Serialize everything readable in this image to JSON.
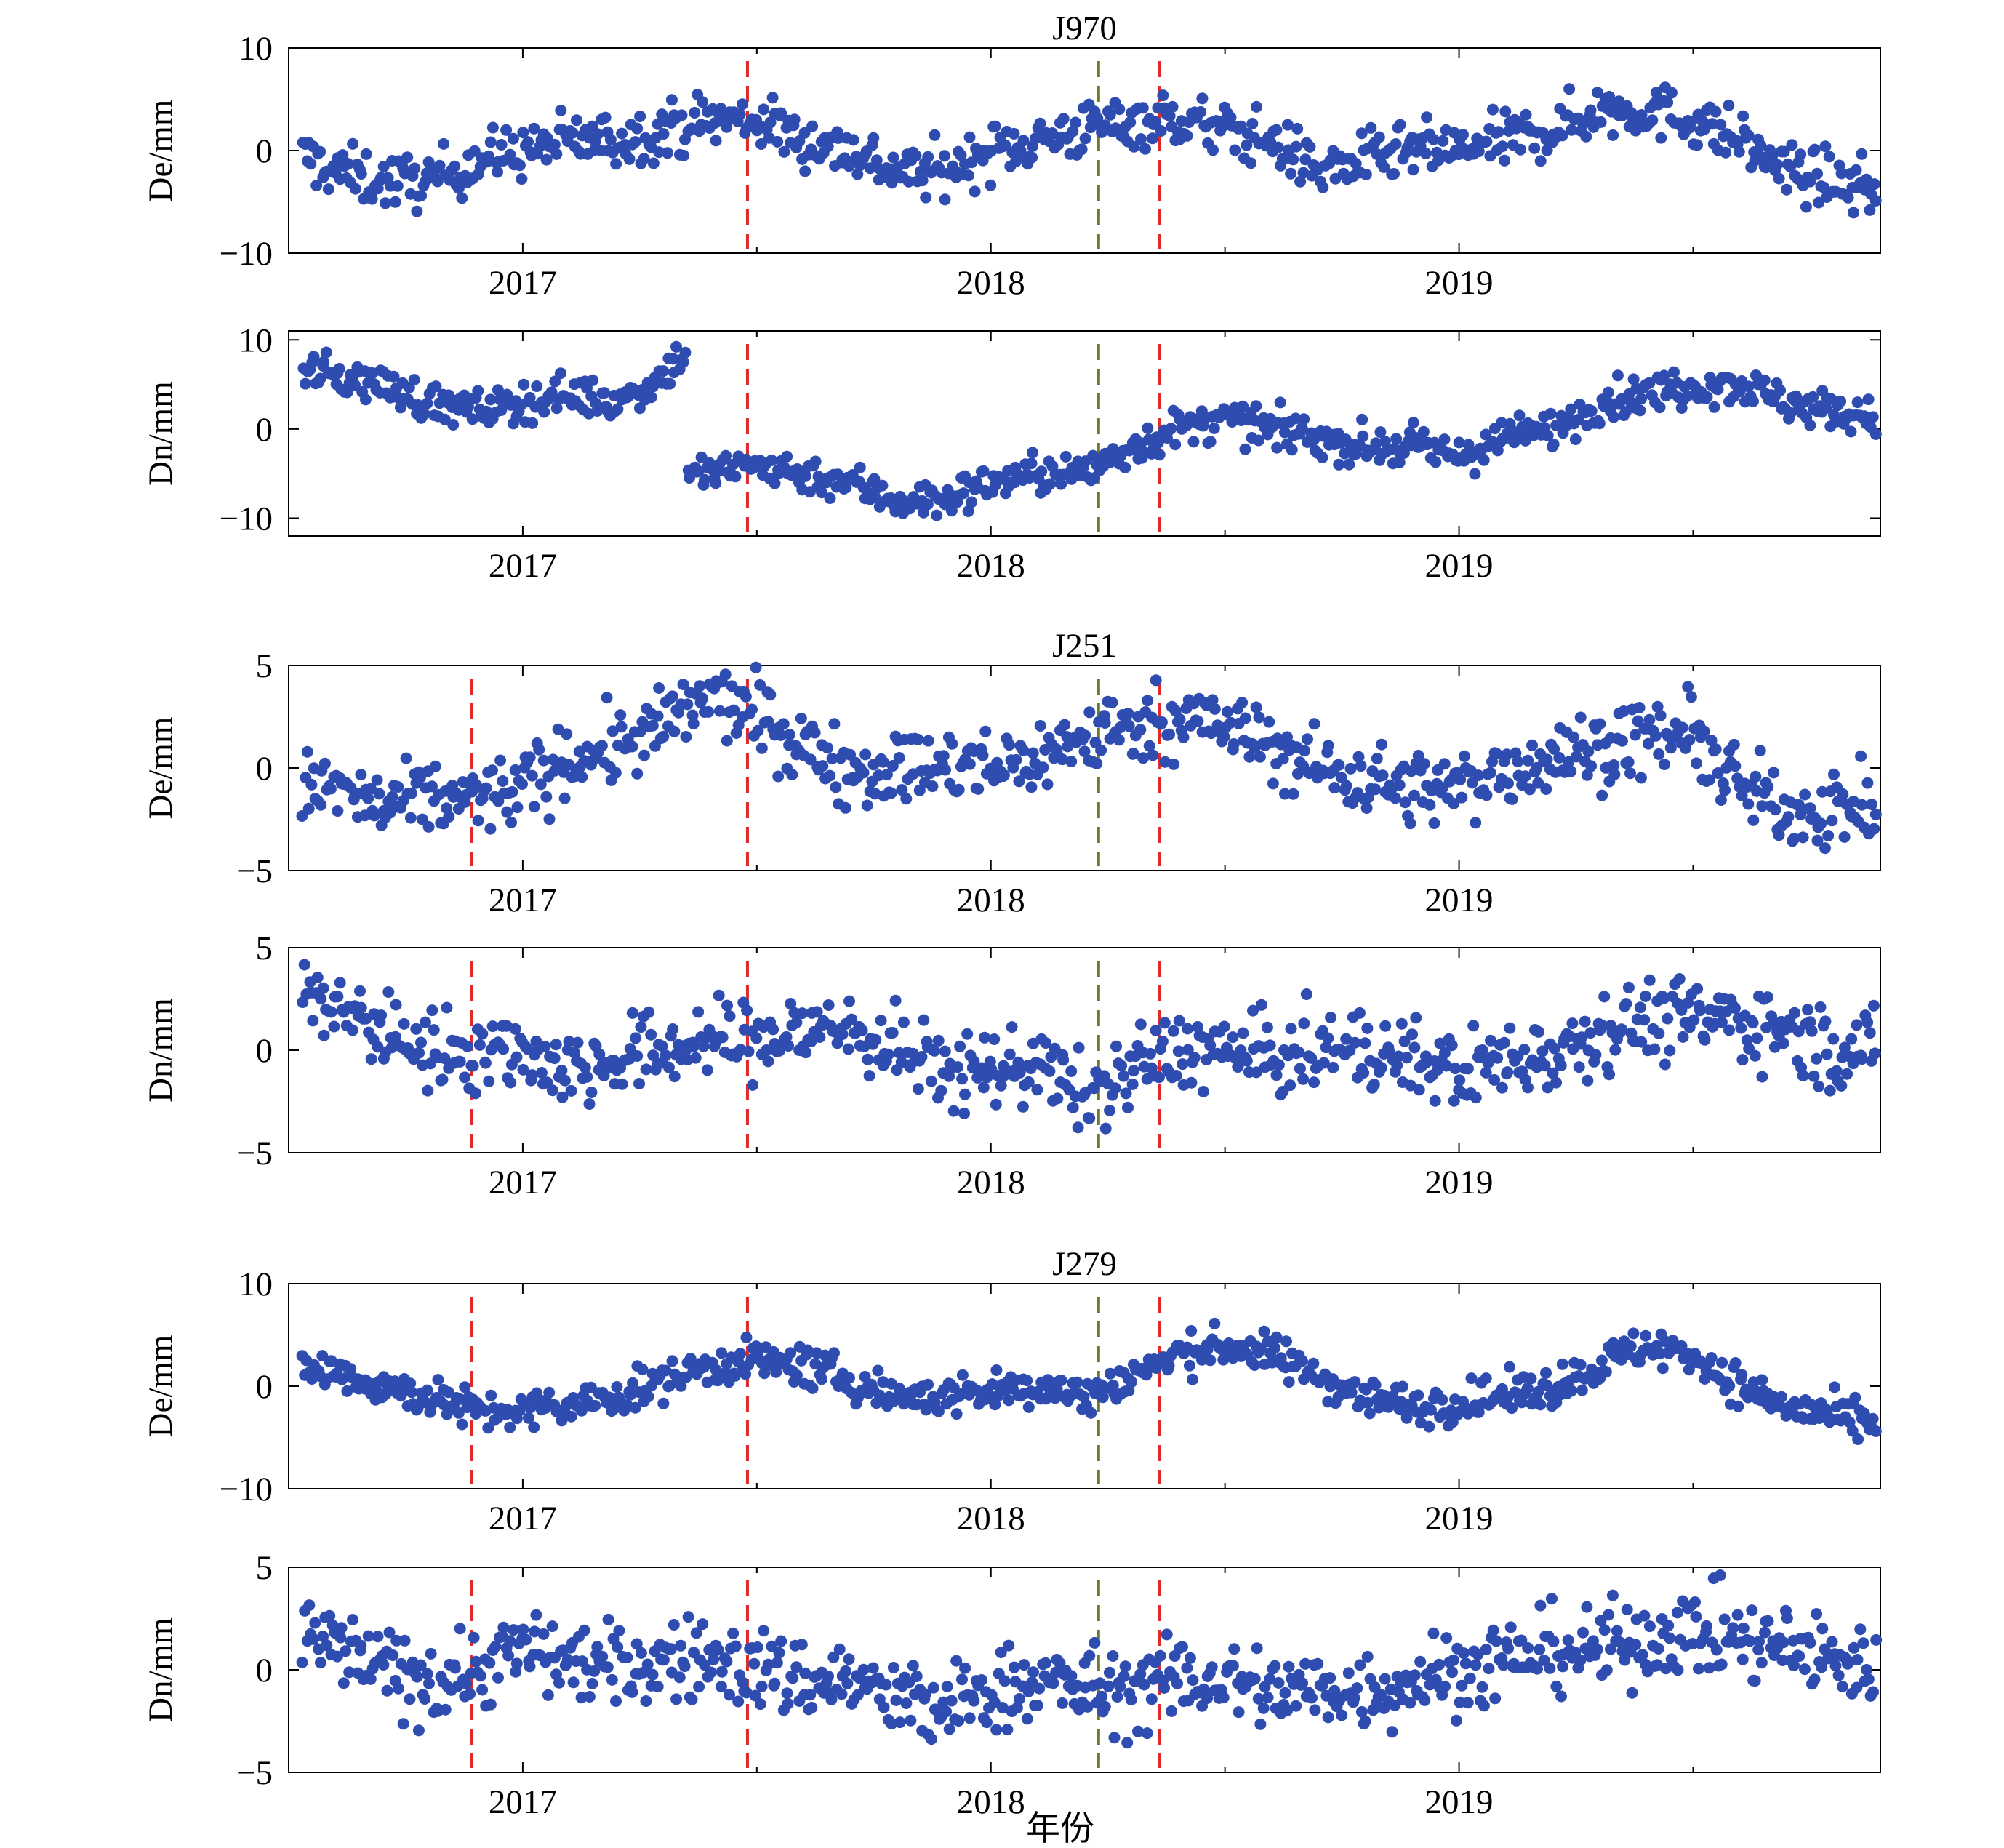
{
  "figure": {
    "xlabel": "年份",
    "marker_color": "#2f4db0",
    "event_colors": {
      "red": "#e02a2a",
      "olive": "#6b7a2a"
    }
  },
  "chart_data": [
    {
      "type": "scatter",
      "station": "J970",
      "title": "J970",
      "component": "De",
      "ylabel": "De/mm",
      "ylim": [
        -10,
        10
      ],
      "yticks": [
        -10,
        0,
        10
      ],
      "xlim": [
        2016.5,
        2019.9
      ],
      "xticks": [
        2017,
        2018,
        2019
      ],
      "events": [
        {
          "x": 2017.48,
          "color": "red"
        },
        {
          "x": 2018.23,
          "color": "olive"
        },
        {
          "x": 2018.36,
          "color": "red"
        }
      ],
      "series": [
        {
          "x": [
            2016.5,
            2016.6,
            2016.7,
            2016.8,
            2016.9,
            2017.0,
            2017.1,
            2017.2,
            2017.3,
            2017.4,
            2017.5,
            2017.6,
            2017.7,
            2017.8,
            2017.9,
            2018.0,
            2018.1,
            2018.2,
            2018.3,
            2018.4,
            2018.5,
            2018.6,
            2018.7,
            2018.8,
            2018.9,
            2019.0,
            2019.1,
            2019.2,
            2019.3,
            2019.4,
            2019.5,
            2019.6,
            2019.7,
            2019.8,
            2019.9
          ],
          "y": [
            0,
            -2,
            -3,
            -3,
            -1,
            0,
            1,
            1,
            2,
            3,
            3,
            1,
            0,
            -2,
            -2,
            0,
            1,
            2,
            3,
            3,
            2,
            1,
            -2,
            -1,
            0,
            0,
            1,
            2,
            4,
            4,
            3,
            1,
            -2,
            -3,
            -4
          ],
          "spread": 2.2
        }
      ]
    },
    {
      "type": "scatter",
      "station": "J970",
      "title": "",
      "component": "Dn",
      "ylabel": "Dn/mm",
      "ylim": [
        -12,
        11
      ],
      "yticks": [
        -10,
        0,
        10
      ],
      "xlim": [
        2016.5,
        2019.9
      ],
      "xticks": [
        2017,
        2018,
        2019
      ],
      "events": [
        {
          "x": 2017.48,
          "color": "red"
        },
        {
          "x": 2018.23,
          "color": "olive"
        },
        {
          "x": 2018.36,
          "color": "red"
        }
      ],
      "series": [
        {
          "x": [
            2016.5,
            2016.6,
            2016.7,
            2016.8,
            2016.9,
            2017.0,
            2017.1,
            2017.2,
            2017.3,
            2017.35,
            2017.36,
            2017.4,
            2017.5,
            2017.6,
            2017.7,
            2017.8,
            2017.9,
            2018.0,
            2018.1,
            2018.2,
            2018.3,
            2018.4,
            2018.5,
            2018.6,
            2018.7,
            2018.8,
            2018.9,
            2019.0,
            2019.1,
            2019.2,
            2019.3,
            2019.4,
            2019.5,
            2019.6,
            2019.7,
            2019.8,
            2019.9
          ],
          "y": [
            7,
            6,
            5,
            3,
            2,
            3,
            4,
            3,
            6,
            9,
            -5,
            -5,
            -4,
            -5,
            -6,
            -8,
            -8,
            -6,
            -5,
            -5,
            -2,
            0,
            1,
            0,
            -1,
            -2,
            -2,
            -3,
            -1,
            0,
            3,
            4,
            5,
            5,
            3,
            2,
            1
          ],
          "spread": 1.8
        }
      ]
    },
    {
      "type": "scatter",
      "station": "J251",
      "title": "J251",
      "component": "De",
      "ylabel": "De/mm",
      "ylim": [
        -5,
        5
      ],
      "yticks": [
        -5,
        0,
        5
      ],
      "xlim": [
        2016.5,
        2019.9
      ],
      "xticks": [
        2017,
        2018,
        2019
      ],
      "events": [
        {
          "x": 2016.89,
          "color": "red"
        },
        {
          "x": 2017.48,
          "color": "red"
        },
        {
          "x": 2018.23,
          "color": "olive"
        },
        {
          "x": 2018.36,
          "color": "red"
        }
      ],
      "series": [
        {
          "x": [
            2016.5,
            2016.6,
            2016.7,
            2016.8,
            2016.9,
            2017.0,
            2017.1,
            2017.2,
            2017.3,
            2017.4,
            2017.5,
            2017.6,
            2017.7,
            2017.8,
            2017.9,
            2018.0,
            2018.1,
            2018.2,
            2018.3,
            2018.4,
            2018.5,
            2018.6,
            2018.7,
            2018.8,
            2018.9,
            2019.0,
            2019.1,
            2019.2,
            2019.3,
            2019.4,
            2019.5,
            2019.6,
            2019.7,
            2019.8,
            2019.9
          ],
          "y": [
            -1,
            -1,
            -2,
            -1.5,
            -1.5,
            -1,
            0.5,
            1,
            2,
            3.5,
            2.5,
            1,
            0,
            0,
            0,
            0,
            0.5,
            1.5,
            2,
            2.5,
            2,
            1,
            0,
            -0.5,
            -1,
            -1,
            0,
            0.5,
            1,
            1.5,
            1.5,
            -1,
            -2,
            -2,
            -2
          ],
          "spread": 1.5
        }
      ]
    },
    {
      "type": "scatter",
      "station": "J251",
      "title": "",
      "component": "Dn",
      "ylabel": "Dn/mm",
      "ylim": [
        -5,
        5
      ],
      "yticks": [
        -5,
        0,
        5
      ],
      "xlim": [
        2016.5,
        2019.9
      ],
      "xticks": [
        2017,
        2018,
        2019
      ],
      "events": [
        {
          "x": 2016.89,
          "color": "red"
        },
        {
          "x": 2017.48,
          "color": "red"
        },
        {
          "x": 2018.23,
          "color": "olive"
        },
        {
          "x": 2018.36,
          "color": "red"
        }
      ],
      "series": [
        {
          "x": [
            2016.5,
            2016.6,
            2016.7,
            2016.8,
            2016.9,
            2017.0,
            2017.1,
            2017.2,
            2017.3,
            2017.4,
            2017.5,
            2017.6,
            2017.7,
            2017.8,
            2017.9,
            2018.0,
            2018.1,
            2018.2,
            2018.3,
            2018.4,
            2018.5,
            2018.6,
            2018.7,
            2018.8,
            2018.9,
            2019.0,
            2019.1,
            2019.2,
            2019.3,
            2019.4,
            2019.5,
            2019.6,
            2019.7,
            2019.8,
            2019.9
          ],
          "y": [
            3,
            2,
            1,
            0,
            0,
            0,
            -1,
            -0.5,
            0,
            0.5,
            0.5,
            1,
            1,
            0,
            -1,
            -1,
            -0.5,
            -2.5,
            -1,
            0,
            0,
            -0.5,
            0,
            0,
            -0.5,
            -1,
            -0.5,
            0,
            1,
            1.5,
            1.5,
            1.5,
            1,
            0,
            0
          ],
          "spread": 1.6
        }
      ]
    },
    {
      "type": "scatter",
      "station": "J279",
      "title": "J279",
      "component": "De",
      "ylabel": "De/mm",
      "ylim": [
        -10,
        10
      ],
      "yticks": [
        -10,
        0,
        10
      ],
      "xlim": [
        2016.5,
        2019.9
      ],
      "xticks": [
        2017,
        2018,
        2019
      ],
      "events": [
        {
          "x": 2016.89,
          "color": "red"
        },
        {
          "x": 2017.48,
          "color": "red"
        },
        {
          "x": 2018.23,
          "color": "olive"
        },
        {
          "x": 2018.36,
          "color": "red"
        }
      ],
      "series": [
        {
          "x": [
            2016.5,
            2016.6,
            2016.7,
            2016.8,
            2016.9,
            2017.0,
            2017.1,
            2017.2,
            2017.3,
            2017.4,
            2017.5,
            2017.6,
            2017.7,
            2017.8,
            2017.9,
            2018.0,
            2018.1,
            2018.2,
            2018.3,
            2018.4,
            2018.5,
            2018.6,
            2018.7,
            2018.8,
            2018.9,
            2019.0,
            2019.1,
            2019.2,
            2019.3,
            2019.4,
            2019.5,
            2019.6,
            2019.7,
            2019.8,
            2019.9
          ],
          "y": [
            2,
            1.5,
            0,
            -1,
            -2.5,
            -2.5,
            -2,
            -1,
            0.5,
            2,
            2.5,
            2,
            0.5,
            -1,
            -1,
            -0.5,
            0,
            -1,
            1,
            3,
            4,
            3,
            1,
            -1,
            -2,
            -1.5,
            -1,
            0,
            2,
            4,
            3,
            0,
            -2,
            -3,
            -4
          ],
          "spread": 1.6
        }
      ]
    },
    {
      "type": "scatter",
      "station": "J279",
      "title": "",
      "component": "Dn",
      "ylabel": "Dn/mm",
      "ylim": [
        -5,
        5
      ],
      "yticks": [
        -5,
        0,
        5
      ],
      "xlim": [
        2016.5,
        2019.9
      ],
      "xticks": [
        2017,
        2018,
        2019
      ],
      "xlabel": "年份",
      "events": [
        {
          "x": 2016.89,
          "color": "red"
        },
        {
          "x": 2017.48,
          "color": "red"
        },
        {
          "x": 2018.23,
          "color": "olive"
        },
        {
          "x": 2018.36,
          "color": "red"
        }
      ],
      "series": [
        {
          "x": [
            2016.5,
            2016.6,
            2016.7,
            2016.8,
            2016.9,
            2017.0,
            2017.1,
            2017.2,
            2017.3,
            2017.4,
            2017.5,
            2017.6,
            2017.7,
            2017.8,
            2017.9,
            2018.0,
            2018.1,
            2018.2,
            2018.3,
            2018.4,
            2018.5,
            2018.6,
            2018.7,
            2018.8,
            2018.9,
            2019.0,
            2019.1,
            2019.2,
            2019.3,
            2019.4,
            2019.5,
            2019.6,
            2019.7,
            2019.8,
            2019.9
          ],
          "y": [
            2,
            1,
            0,
            -0.5,
            0,
            1,
            0.5,
            0,
            0.5,
            0.5,
            0,
            -0.5,
            -0.5,
            -1.5,
            -2,
            -1,
            -0.5,
            -1,
            -1,
            -0.5,
            -0.5,
            -1,
            -1,
            -1,
            -0.5,
            0,
            0.5,
            1,
            1,
            1.5,
            2,
            1.5,
            1,
            0.5,
            0
          ],
          "spread": 1.7
        }
      ]
    }
  ]
}
